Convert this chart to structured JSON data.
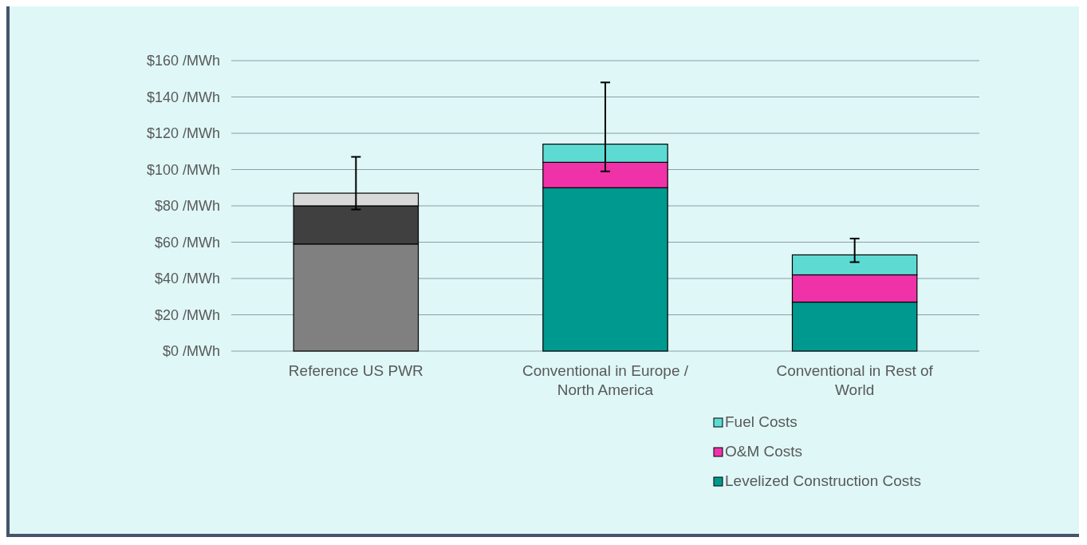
{
  "chart_data": {
    "type": "bar",
    "stacked": true,
    "categories": [
      "Reference US PWR",
      "Conventional in Europe / North America",
      "Conventional in Rest of World"
    ],
    "series": [
      {
        "name": "Levelized Construction Costs",
        "color": "#009990",
        "colors": [
          "#808080",
          "#009990",
          "#009990"
        ],
        "values": [
          59,
          90,
          27
        ]
      },
      {
        "name": "O&M Costs",
        "color": "#f032a8",
        "colors": [
          "#404040",
          "#f032a8",
          "#f032a8"
        ],
        "values": [
          21,
          14,
          15
        ]
      },
      {
        "name": "Fuel Costs",
        "color": "#5ddbd3",
        "colors": [
          "#d9d9d9",
          "#5ddbd3",
          "#5ddbd3"
        ],
        "values": [
          7,
          10,
          11
        ],
        "errors": [
          [
            78,
            107
          ],
          [
            99,
            148
          ],
          [
            49,
            62
          ]
        ]
      }
    ],
    "ylim": [
      0,
      160
    ],
    "yticks": [
      {
        "value": 0,
        "label": "$0 /MWh"
      },
      {
        "value": 20,
        "label": "$20 /MWh"
      },
      {
        "value": 40,
        "label": "$40 /MWh"
      },
      {
        "value": 60,
        "label": "$60 /MWh"
      },
      {
        "value": 80,
        "label": "$80 /MWh"
      },
      {
        "value": 100,
        "label": "$100 /MWh"
      },
      {
        "value": 120,
        "label": "$120 /MWh"
      },
      {
        "value": 140,
        "label": "$140 /MWh"
      },
      {
        "value": 160,
        "label": "$160 /MWh"
      }
    ],
    "grid": "y",
    "legend": "bottom"
  }
}
